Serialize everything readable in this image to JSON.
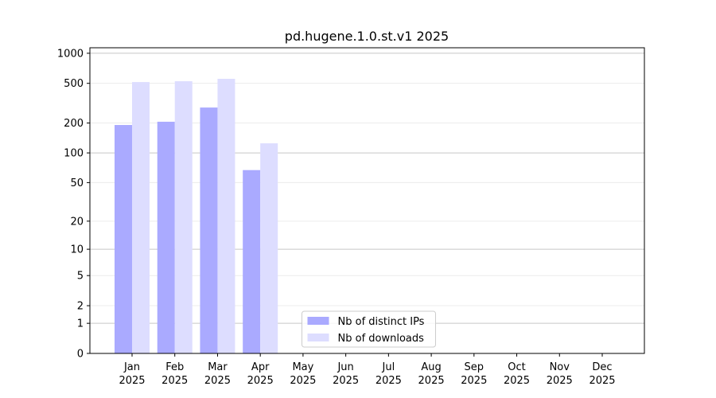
{
  "chart_data": {
    "type": "bar",
    "title": "pd.hugene.1.0.st.v1 2025",
    "categories": [
      "Jan 2025",
      "Feb 2025",
      "Mar 2025",
      "Apr 2025",
      "May 2025",
      "Jun 2025",
      "Jul 2025",
      "Aug 2025",
      "Sep 2025",
      "Oct 2025",
      "Nov 2025",
      "Dec 2025"
    ],
    "series": [
      {
        "name": "Nb of distinct IPs",
        "color": "#aaaaff",
        "values": [
          191,
          206,
          286,
          67,
          null,
          null,
          null,
          null,
          null,
          null,
          null,
          null
        ]
      },
      {
        "name": "Nb of downloads",
        "color": "#ddddff",
        "values": [
          515,
          525,
          555,
          125,
          null,
          null,
          null,
          null,
          null,
          null,
          null,
          null
        ]
      }
    ],
    "yscale": "log1p",
    "ylim": [
      0,
      1135
    ],
    "yticks": [
      0,
      1,
      2,
      5,
      10,
      20,
      50,
      100,
      200,
      500,
      1000
    ],
    "grid": true,
    "legend": "lower center"
  }
}
